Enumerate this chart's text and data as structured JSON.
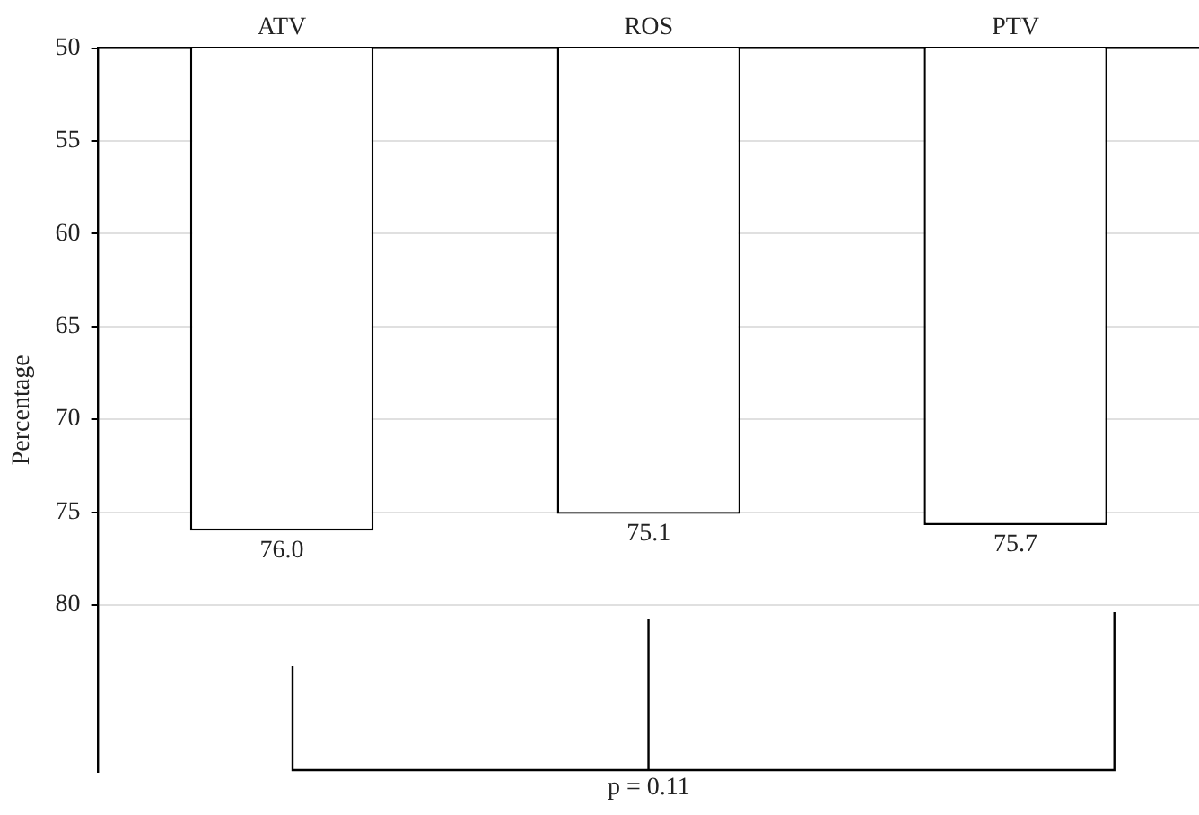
{
  "chart_data": {
    "type": "bar",
    "categories": [
      "ATV",
      "ROS",
      "PTV"
    ],
    "values": [
      76.0,
      75.1,
      75.7
    ],
    "color": "#ffffff",
    "ylabel": "Percentage",
    "ylim": [
      89,
      50
    ],
    "yticks": [
      50,
      55,
      60,
      65,
      70,
      75,
      80
    ],
    "grid": "y",
    "legend": false,
    "value_labels": [
      "76.0",
      "75.1",
      "75.7"
    ],
    "annotations": [
      "p = 0.11"
    ]
  }
}
